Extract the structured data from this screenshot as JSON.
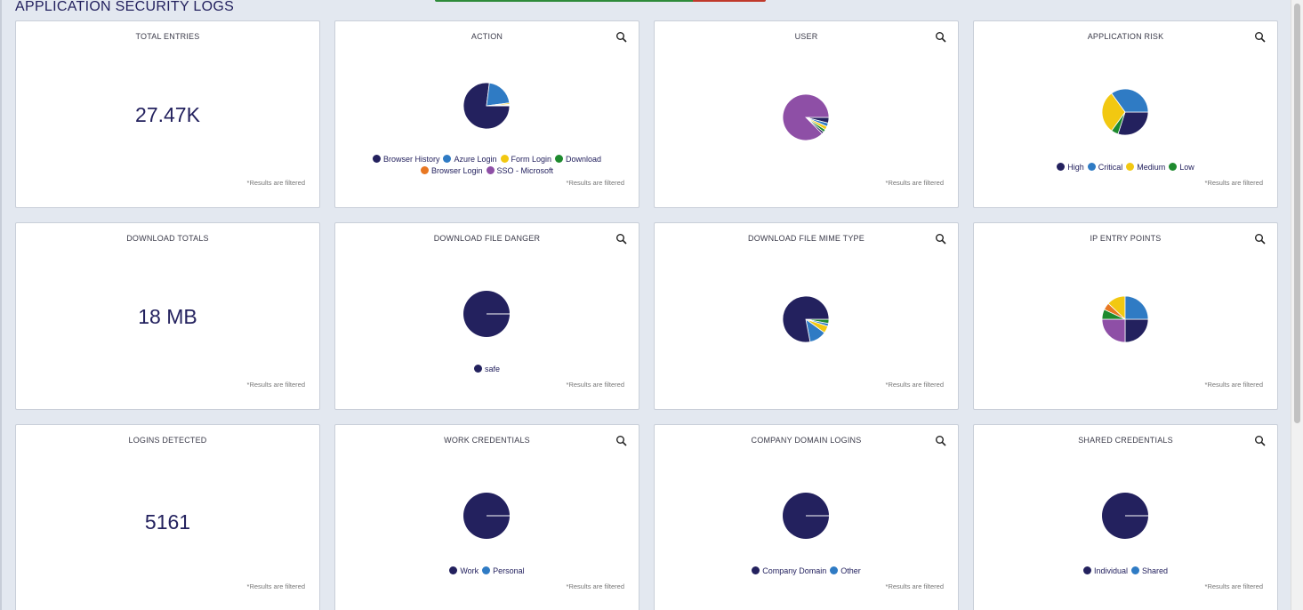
{
  "page": {
    "title": "APPLICATION SECURITY LOGS"
  },
  "colors": {
    "navy": "#23215e",
    "blue": "#2f7bc4",
    "yellow": "#f2c811",
    "green": "#1e8a2e",
    "orange": "#e87722",
    "purple": "#8e4fa6"
  },
  "note": "*Results are filtered",
  "cards": {
    "total_entries": {
      "title": "TOTAL ENTRIES",
      "value": "27.47K"
    },
    "action": {
      "title": "ACTION",
      "legend": [
        "Browser History",
        "Azure Login",
        "Form Login",
        "Download",
        "Browser Login",
        "SSO - Microsoft"
      ]
    },
    "user": {
      "title": "USER"
    },
    "application_risk": {
      "title": "APPLICATION RISK",
      "legend": [
        "High",
        "Critical",
        "Medium",
        "Low"
      ]
    },
    "download_totals": {
      "title": "DOWNLOAD TOTALS",
      "value": "18 MB"
    },
    "download_file_danger": {
      "title": "DOWNLOAD FILE DANGER",
      "legend": [
        "safe"
      ]
    },
    "download_file_mime_type": {
      "title": "DOWNLOAD FILE MIME TYPE"
    },
    "ip_entry_points": {
      "title": "IP ENTRY POINTS"
    },
    "logins_detected": {
      "title": "LOGINS DETECTED",
      "value": "5161"
    },
    "work_credentials": {
      "title": "WORK CREDENTIALS",
      "legend": [
        "Work",
        "Personal"
      ]
    },
    "company_domain_logins": {
      "title": "COMPANY DOMAIN LOGINS",
      "legend": [
        "Company Domain",
        "Other"
      ]
    },
    "shared_credentials": {
      "title": "SHARED CREDENTIALS",
      "legend": [
        "Individual",
        "Shared"
      ]
    }
  },
  "pies": {
    "action": [
      {
        "v": 0.77,
        "c": "#23215e"
      },
      {
        "v": 0.21,
        "c": "#2f7bc4"
      },
      {
        "v": 0.01,
        "c": "#f2c811"
      },
      {
        "v": 0.005,
        "c": "#1e8a2e"
      },
      {
        "v": 0.003,
        "c": "#e87722"
      },
      {
        "v": 0.002,
        "c": "#8e4fa6"
      }
    ],
    "user": [
      {
        "v": 0.04,
        "c": "#23215e"
      },
      {
        "v": 0.025,
        "c": "#2f7bc4"
      },
      {
        "v": 0.025,
        "c": "#f2c811"
      },
      {
        "v": 0.02,
        "c": "#1e8a2e"
      },
      {
        "v": 0.015,
        "c": "#23215e"
      },
      {
        "v": 0.875,
        "c": "#8e4fa6"
      }
    ],
    "application_risk": [
      {
        "v": 0.3,
        "c": "#23215e"
      },
      {
        "v": 0.05,
        "c": "#1e8a2e"
      },
      {
        "v": 0.3,
        "c": "#f2c811"
      },
      {
        "v": 0.35,
        "c": "#2f7bc4"
      }
    ],
    "download_file_danger": [
      {
        "v": 1.0,
        "c": "#23215e"
      }
    ],
    "download_file_mime_type": [
      {
        "v": 0.03,
        "c": "#1e8a2e"
      },
      {
        "v": 0.02,
        "c": "#2f7bc4"
      },
      {
        "v": 0.05,
        "c": "#f2c811"
      },
      {
        "v": 0.12,
        "c": "#2f7bc4"
      },
      {
        "v": 0.78,
        "c": "#23215e"
      }
    ],
    "ip_entry_points": [
      {
        "v": 0.25,
        "c": "#23215e"
      },
      {
        "v": 0.25,
        "c": "#8e4fa6"
      },
      {
        "v": 0.07,
        "c": "#1e8a2e"
      },
      {
        "v": 0.05,
        "c": "#e87722"
      },
      {
        "v": 0.13,
        "c": "#f2c811"
      },
      {
        "v": 0.25,
        "c": "#2f7bc4"
      }
    ],
    "work_credentials": [
      {
        "v": 1.0,
        "c": "#23215e"
      }
    ],
    "company_domain_logins": [
      {
        "v": 1.0,
        "c": "#23215e"
      }
    ],
    "shared_credentials": [
      {
        "v": 1.0,
        "c": "#23215e"
      }
    ]
  }
}
